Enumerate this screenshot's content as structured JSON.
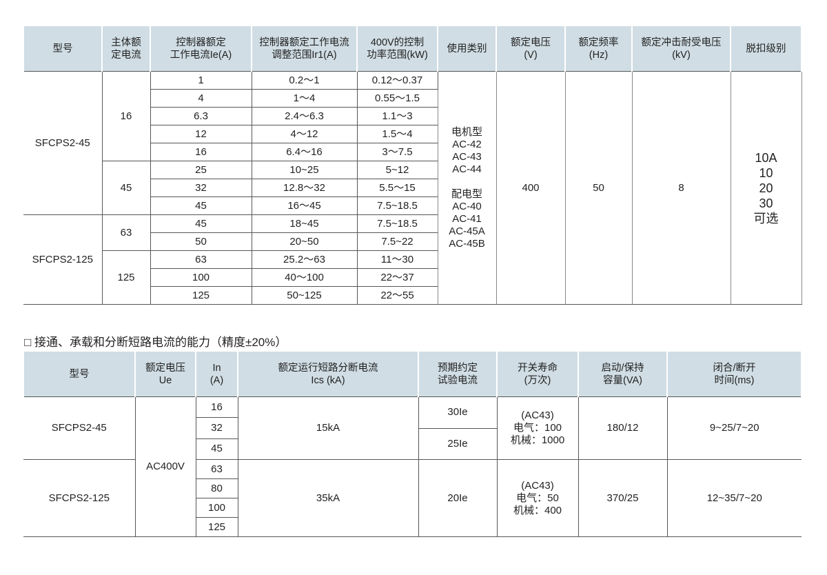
{
  "table1": {
    "headers": [
      "型号",
      "主体额定电流",
      "控制器额定工作电流Ie(A)",
      "控制器额定工作电流调整范围Ir1(A)",
      "400V的控制功率范围(kW)",
      "使用类别",
      "额定电压(V)",
      "额定频率(Hz)",
      "额定冲击耐受电压(kV)",
      "脱扣级别"
    ],
    "header_lines": [
      [
        "型号"
      ],
      [
        "主体额",
        "定电流"
      ],
      [
        "控制器额定",
        "工作电流Ie(A)"
      ],
      [
        "控制器额定工作电流",
        "调整范围Ir1(A)"
      ],
      [
        "400V的控制",
        "功率范围(kW)"
      ],
      [
        "使用类别"
      ],
      [
        "额定电压",
        "(V)"
      ],
      [
        "额定频率",
        "(Hz)"
      ],
      [
        "额定冲击耐受电压",
        "(kV)"
      ],
      [
        "脱扣级别"
      ]
    ],
    "models": [
      "SFCPS2-45",
      "SFCPS2-125"
    ],
    "frame_currents": [
      "16",
      "45",
      "63",
      "125"
    ],
    "rows": [
      [
        "1",
        "0.2～1",
        "0.12～0.37"
      ],
      [
        "4",
        "1～4",
        "0.55～1.5"
      ],
      [
        "6.3",
        "2.4～6.3",
        "1.1～3"
      ],
      [
        "12",
        "4～12",
        "1.5～4"
      ],
      [
        "16",
        "6.4～16",
        "3～7.5"
      ],
      [
        "25",
        "10~25",
        "5~12"
      ],
      [
        "32",
        "12.8～32",
        "5.5～15"
      ],
      [
        "45",
        "16～45",
        "7.5~18.5"
      ],
      [
        "45",
        "18~45",
        "7.5~18.5"
      ],
      [
        "50",
        "20~50",
        "7.5~22"
      ],
      [
        "63",
        "25.2～63",
        "11～30"
      ],
      [
        "100",
        "40～100",
        "22～37"
      ],
      [
        "125",
        "50~125",
        "22～55"
      ]
    ],
    "usage": [
      "电机型",
      "AC-42",
      "AC-43",
      "AC-44",
      "",
      "配电型",
      "AC-40",
      "AC-41",
      "AC-45A",
      "AC-45B"
    ],
    "voltage": "400",
    "frequency": "50",
    "impulse": "8",
    "trip_class": [
      "10A",
      "10",
      "20",
      "30",
      "可选"
    ]
  },
  "table2": {
    "title": "□ 接通、承载和分断短路电流的能力（精度±20%）",
    "header_lines": [
      [
        "型号"
      ],
      [
        "额定电压",
        "Ue"
      ],
      [
        "In",
        "(A)"
      ],
      [
        "额定运行短路分断电流",
        "Ics (kA)"
      ],
      [
        "预期约定",
        "试验电流"
      ],
      [
        "开关寿命",
        "(万次)"
      ],
      [
        "启动/保持",
        "容量(VA)"
      ],
      [
        "闭合/断开",
        "时间(ms)"
      ]
    ],
    "voltage": "AC400V",
    "groups": [
      {
        "model": "SFCPS2-45",
        "in": [
          "16",
          "32",
          "45"
        ],
        "ics": "15kA",
        "test": [
          "30Ie",
          "25Ie"
        ],
        "life": [
          "(AC43)",
          "电气：100",
          "机械：1000"
        ],
        "capacity": "180/12",
        "time": "9~25/7~20"
      },
      {
        "model": "SFCPS2-125",
        "in": [
          "63",
          "80",
          "100",
          "125"
        ],
        "ics": "35kA",
        "test": [
          "20Ie"
        ],
        "life": [
          "(AC43)",
          "电气：50",
          "机械：400"
        ],
        "capacity": "370/25",
        "time": "12~35/7~20"
      }
    ]
  },
  "colors": {
    "header_bg": "#d0dde4"
  }
}
